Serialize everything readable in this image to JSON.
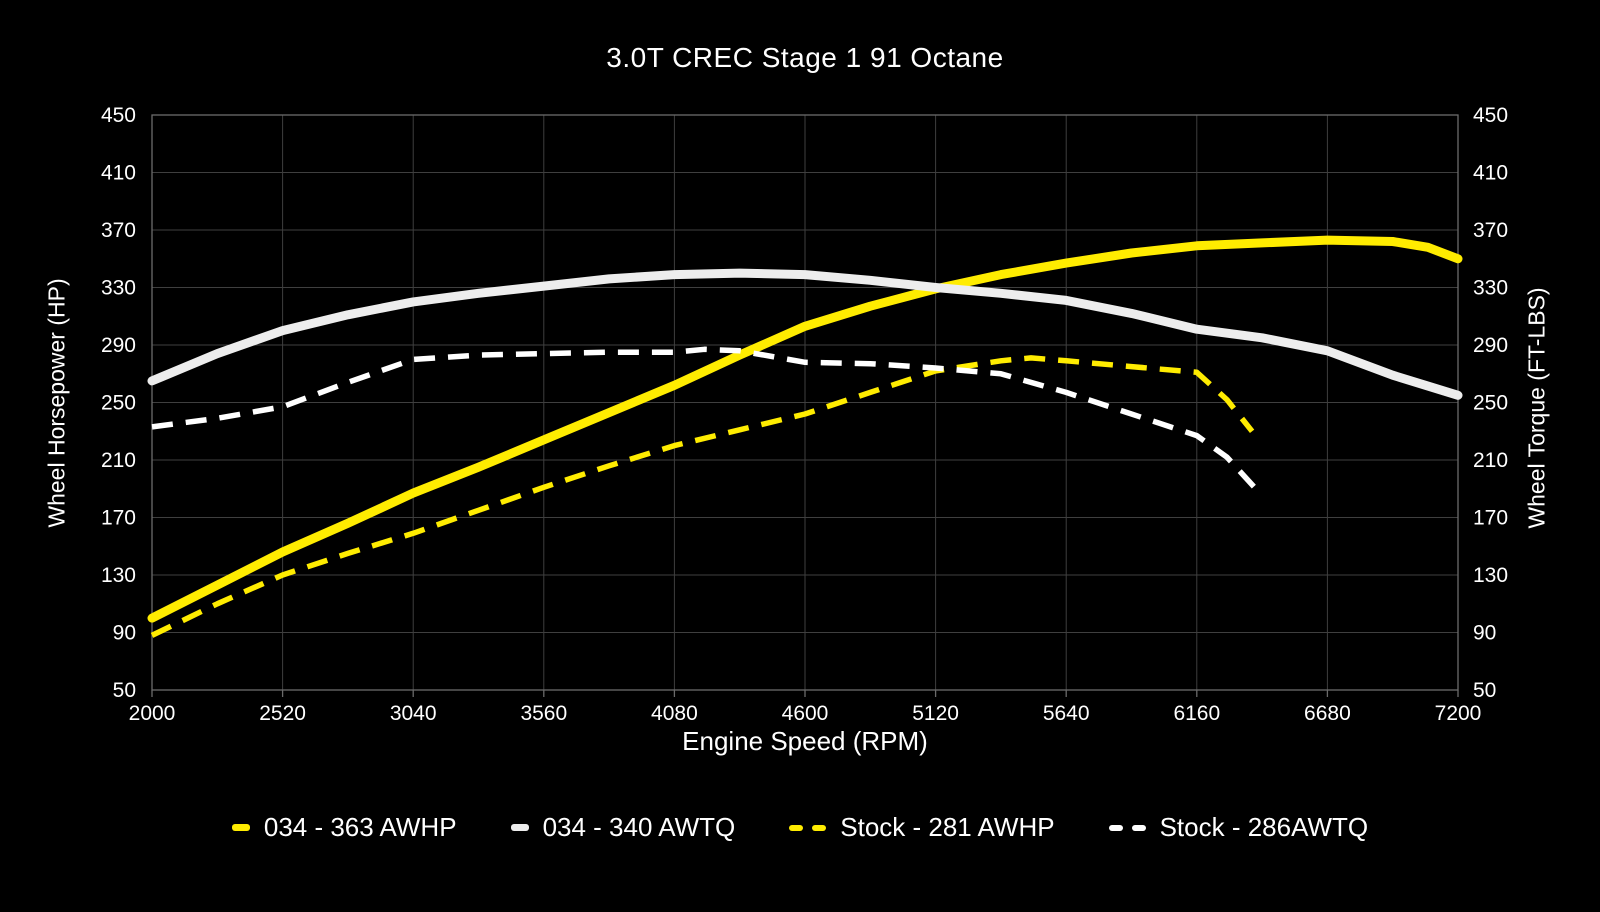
{
  "chart_data": {
    "type": "line",
    "title": "3.0T CREC Stage 1 91 Octane",
    "xlabel": "Engine Speed (RPM)",
    "ylabel_left": "Wheel Horsepower (HP)",
    "ylabel_right": "Wheel Torque (FT-LBS)",
    "x_range": [
      2000,
      7200
    ],
    "y_range": [
      50,
      450
    ],
    "x_ticks": [
      2000,
      2520,
      3040,
      3560,
      4080,
      4600,
      5120,
      5640,
      6160,
      6680,
      7200
    ],
    "y_ticks": [
      450,
      410,
      370,
      330,
      290,
      250,
      210,
      170,
      130,
      90,
      50
    ],
    "grid": true,
    "legend_position": "bottom",
    "colors": {
      "background": "#000000",
      "grid": "#3f3f3f",
      "frame": "#6b6b6b",
      "text": "#ffffff",
      "accent_yellow": "#ffec00",
      "accent_white": "#ededed"
    },
    "series": [
      {
        "name": "034 - 363 AWHP",
        "color": "#ffec00",
        "style": "solid",
        "axis": "hp",
        "points": [
          [
            2000,
            100
          ],
          [
            2260,
            123
          ],
          [
            2520,
            146
          ],
          [
            2780,
            166
          ],
          [
            3040,
            187
          ],
          [
            3300,
            205
          ],
          [
            3560,
            224
          ],
          [
            3820,
            243
          ],
          [
            4080,
            262
          ],
          [
            4340,
            283
          ],
          [
            4600,
            303
          ],
          [
            4860,
            317
          ],
          [
            5120,
            329
          ],
          [
            5380,
            339
          ],
          [
            5640,
            347
          ],
          [
            5900,
            354
          ],
          [
            6160,
            359
          ],
          [
            6420,
            361
          ],
          [
            6680,
            363
          ],
          [
            6940,
            362
          ],
          [
            7080,
            358
          ],
          [
            7200,
            350
          ]
        ]
      },
      {
        "name": "034 - 340 AWTQ",
        "color": "#ededed",
        "style": "solid",
        "axis": "tq",
        "points": [
          [
            2000,
            265
          ],
          [
            2260,
            284
          ],
          [
            2520,
            300
          ],
          [
            2780,
            311
          ],
          [
            3040,
            320
          ],
          [
            3300,
            326
          ],
          [
            3560,
            331
          ],
          [
            3820,
            336
          ],
          [
            4080,
            339
          ],
          [
            4340,
            340
          ],
          [
            4600,
            339
          ],
          [
            4860,
            335
          ],
          [
            5120,
            330
          ],
          [
            5380,
            326
          ],
          [
            5640,
            321
          ],
          [
            5900,
            312
          ],
          [
            6160,
            301
          ],
          [
            6420,
            295
          ],
          [
            6680,
            286
          ],
          [
            6940,
            269
          ],
          [
            7200,
            255
          ]
        ]
      },
      {
        "name": "Stock - 281 AWHP",
        "color": "#ffec00",
        "style": "dashed",
        "axis": "hp",
        "points": [
          [
            2000,
            88
          ],
          [
            2260,
            110
          ],
          [
            2520,
            130
          ],
          [
            2780,
            145
          ],
          [
            3040,
            159
          ],
          [
            3300,
            175
          ],
          [
            3560,
            191
          ],
          [
            3820,
            206
          ],
          [
            4080,
            220
          ],
          [
            4340,
            231
          ],
          [
            4600,
            242
          ],
          [
            4860,
            257
          ],
          [
            5120,
            272
          ],
          [
            5380,
            279
          ],
          [
            5500,
            281
          ],
          [
            5640,
            279
          ],
          [
            5900,
            275
          ],
          [
            6160,
            271
          ],
          [
            6280,
            252
          ],
          [
            6380,
            230
          ]
        ]
      },
      {
        "name": "Stock - 286AWTQ",
        "color": "#ffffff",
        "style": "dashed",
        "axis": "tq",
        "points": [
          [
            2000,
            233
          ],
          [
            2260,
            239
          ],
          [
            2520,
            247
          ],
          [
            2780,
            264
          ],
          [
            3040,
            280
          ],
          [
            3300,
            283
          ],
          [
            3560,
            284
          ],
          [
            3820,
            285
          ],
          [
            4080,
            285
          ],
          [
            4200,
            287
          ],
          [
            4340,
            286
          ],
          [
            4600,
            278
          ],
          [
            4860,
            277
          ],
          [
            5120,
            274
          ],
          [
            5380,
            270
          ],
          [
            5640,
            257
          ],
          [
            5900,
            242
          ],
          [
            6160,
            227
          ],
          [
            6280,
            212
          ],
          [
            6400,
            189
          ]
        ]
      }
    ]
  }
}
